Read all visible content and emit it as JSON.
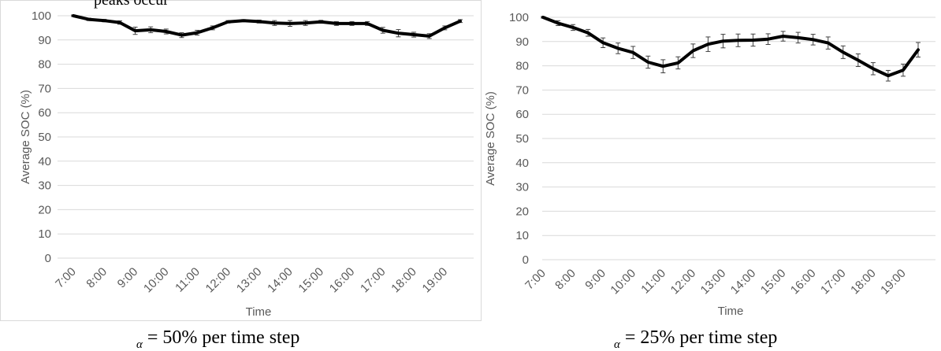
{
  "chart_data": [
    {
      "type": "line",
      "xlabel": "Time",
      "ylabel": "Average SOC (%)",
      "ylim": [
        0,
        100
      ],
      "yticks": [
        0,
        10,
        20,
        30,
        40,
        50,
        60,
        70,
        80,
        90,
        100
      ],
      "xtick_labels": [
        "7:00",
        "8:00",
        "9:00",
        "10:00",
        "11:00",
        "12:00",
        "13:00",
        "14:00",
        "15:00",
        "16:00",
        "17:00",
        "18:00",
        "19:00"
      ],
      "x": [
        "7:00",
        "7:30",
        "8:00",
        "8:30",
        "9:00",
        "9:30",
        "10:00",
        "10:30",
        "11:00",
        "11:30",
        "12:00",
        "12:30",
        "13:00",
        "13:30",
        "14:00",
        "14:30",
        "15:00",
        "15:30",
        "16:00",
        "16:30",
        "17:00",
        "17:30",
        "18:00",
        "18:30",
        "19:00",
        "19:30"
      ],
      "series": [
        {
          "values": [
            100,
            98.5,
            98,
            97.2,
            93.8,
            94.2,
            93.5,
            92,
            93,
            95,
            97.5,
            98,
            97.6,
            97,
            96.8,
            97,
            97.5,
            96.8,
            96.8,
            96.8,
            94,
            92.8,
            92.2,
            91.6,
            95,
            97.8
          ],
          "errors": [
            0.3,
            0.5,
            0.5,
            0.7,
            1.5,
            1.2,
            1.0,
            1.0,
            1.0,
            0.8,
            0.5,
            0.4,
            0.6,
            1.0,
            1.2,
            1.0,
            0.6,
            0.8,
            0.8,
            0.8,
            1.2,
            1.5,
            1.0,
            1.0,
            0.8,
            0.6
          ]
        }
      ],
      "grid": true,
      "line_color": "#000000",
      "grid_color": "#d9d9d9"
    },
    {
      "type": "line",
      "xlabel": "Time",
      "ylabel": "Average SOC (%)",
      "ylim": [
        0,
        100
      ],
      "yticks": [
        0,
        10,
        20,
        30,
        40,
        50,
        60,
        70,
        80,
        90,
        100
      ],
      "xtick_labels": [
        "7:00",
        "8:00",
        "9:00",
        "10:00",
        "11:00",
        "12:00",
        "13:00",
        "14:00",
        "15:00",
        "16:00",
        "17:00",
        "18:00",
        "19:00"
      ],
      "x": [
        "7:00",
        "7:30",
        "8:00",
        "8:30",
        "9:00",
        "9:30",
        "10:00",
        "10:30",
        "11:00",
        "11:30",
        "12:00",
        "12:30",
        "13:00",
        "13:30",
        "14:00",
        "14:30",
        "15:00",
        "15:30",
        "16:00",
        "16:30",
        "17:00",
        "17:30",
        "18:00",
        "18:30",
        "19:00",
        "19:30"
      ],
      "series": [
        {
          "values": [
            100,
            97.6,
            95.8,
            93.6,
            89.5,
            87.2,
            85.5,
            81.5,
            79.8,
            81.2,
            86.2,
            88.9,
            90.2,
            90.5,
            90.6,
            91,
            92.2,
            91.6,
            90.8,
            89.4,
            85.6,
            82.3,
            78.8,
            75.9,
            78.2,
            86.6
          ],
          "errors": [
            0.3,
            1.0,
            1.2,
            1.4,
            2.0,
            2.2,
            2.5,
            2.5,
            2.7,
            2.5,
            2.8,
            3.0,
            2.8,
            2.6,
            2.5,
            2.2,
            2.0,
            2.2,
            2.2,
            2.5,
            2.6,
            2.6,
            2.5,
            2.2,
            2.5,
            3.0
          ]
        }
      ],
      "grid": true,
      "line_color": "#000000",
      "grid_color": "#d9d9d9"
    }
  ],
  "captions": [
    {
      "symbol": "α",
      "text": "= 50% per time step"
    },
    {
      "symbol": "α",
      "text": "= 25% per time step"
    }
  ],
  "clipped_text": "peaks occur"
}
